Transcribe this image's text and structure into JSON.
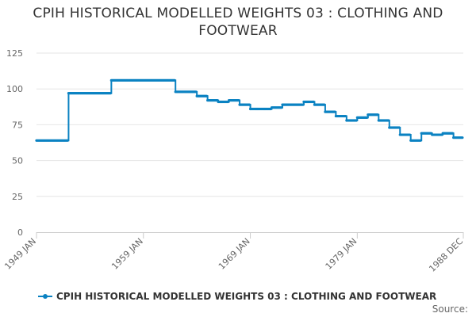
{
  "chart_data": {
    "type": "line",
    "title": "CPIH HISTORICAL MODELLED WEIGHTS 03 : CLOTHING AND FOOTWEAR",
    "xlabel": "",
    "ylabel": "",
    "ylim": [
      0,
      125
    ],
    "yticks": [
      0,
      25,
      50,
      75,
      100,
      125
    ],
    "xlim": [
      1949.0,
      1988.917
    ],
    "xticks": [
      {
        "label": "1949 JAN",
        "value": 1949.0
      },
      {
        "label": "1959 JAN",
        "value": 1959.0
      },
      {
        "label": "1969 JAN",
        "value": 1969.0
      },
      {
        "label": "1979 JAN",
        "value": 1979.0
      },
      {
        "label": "1988 DEC",
        "value": 1988.917
      }
    ],
    "grid": true,
    "legend_position": "bottom-left",
    "color": "#0b82c2",
    "series": [
      {
        "name": "CPIH HISTORICAL MODELLED WEIGHTS 03 : CLOTHING AND FOOTWEAR",
        "steps": [
          {
            "from": 1949.0,
            "to": 1952.0,
            "value": 64
          },
          {
            "from": 1952.0,
            "to": 1956.0,
            "value": 97
          },
          {
            "from": 1956.0,
            "to": 1962.0,
            "value": 106
          },
          {
            "from": 1962.0,
            "to": 1964.0,
            "value": 98
          },
          {
            "from": 1964.0,
            "to": 1965.0,
            "value": 95
          },
          {
            "from": 1965.0,
            "to": 1966.0,
            "value": 92
          },
          {
            "from": 1966.0,
            "to": 1967.0,
            "value": 91
          },
          {
            "from": 1967.0,
            "to": 1968.0,
            "value": 92
          },
          {
            "from": 1968.0,
            "to": 1969.0,
            "value": 89
          },
          {
            "from": 1969.0,
            "to": 1971.0,
            "value": 86
          },
          {
            "from": 1971.0,
            "to": 1972.0,
            "value": 87
          },
          {
            "from": 1972.0,
            "to": 1974.0,
            "value": 89
          },
          {
            "from": 1974.0,
            "to": 1975.0,
            "value": 91
          },
          {
            "from": 1975.0,
            "to": 1976.0,
            "value": 89
          },
          {
            "from": 1976.0,
            "to": 1977.0,
            "value": 84
          },
          {
            "from": 1977.0,
            "to": 1978.0,
            "value": 81
          },
          {
            "from": 1978.0,
            "to": 1979.0,
            "value": 78
          },
          {
            "from": 1979.0,
            "to": 1980.0,
            "value": 80
          },
          {
            "from": 1980.0,
            "to": 1981.0,
            "value": 82
          },
          {
            "from": 1981.0,
            "to": 1982.0,
            "value": 78
          },
          {
            "from": 1982.0,
            "to": 1983.0,
            "value": 73
          },
          {
            "from": 1983.0,
            "to": 1984.0,
            "value": 68
          },
          {
            "from": 1984.0,
            "to": 1985.0,
            "value": 64
          },
          {
            "from": 1985.0,
            "to": 1986.0,
            "value": 69
          },
          {
            "from": 1986.0,
            "to": 1987.0,
            "value": 68
          },
          {
            "from": 1987.0,
            "to": 1988.0,
            "value": 69
          },
          {
            "from": 1988.0,
            "to": 1988.917,
            "value": 66
          }
        ]
      }
    ]
  },
  "legend": {
    "label": "CPIH HISTORICAL MODELLED WEIGHTS 03 : CLOTHING AND FOOTWEAR"
  },
  "footer": {
    "source": "Source:"
  }
}
